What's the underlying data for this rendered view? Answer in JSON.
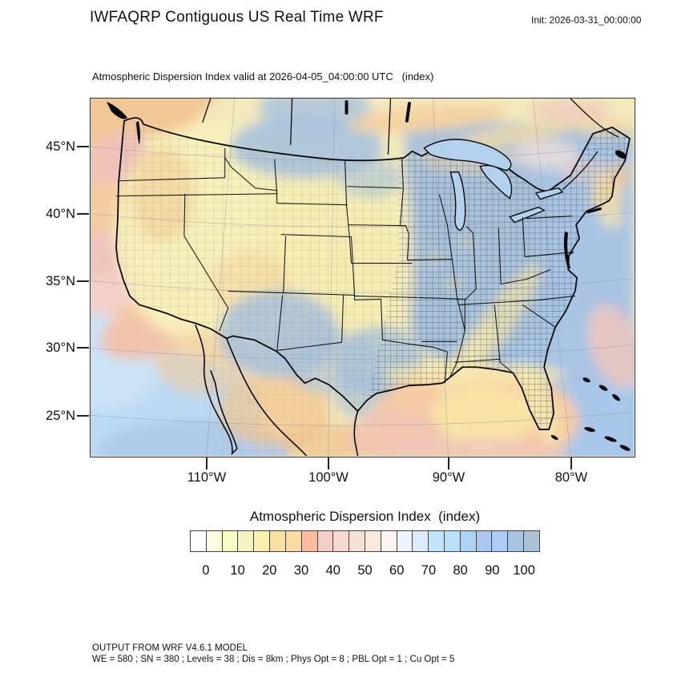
{
  "header": {
    "title": "IWFAQRP Contiguous US Real Time WRF",
    "init_label": "Init: 2026-03-31_00:00:00"
  },
  "plot": {
    "subtitle": "Atmospheric Dispersion Index valid at 2026-04-05_04:00:00 UTC   (index)"
  },
  "axes": {
    "lat_labels": [
      "45°N",
      "40°N",
      "35°N",
      "30°N",
      "25°N"
    ],
    "lon_labels": [
      "110°W",
      "100°W",
      "90°W",
      "80°W"
    ]
  },
  "colorbar": {
    "title": "Atmospheric Dispersion Index  (index)",
    "tick_labels": [
      "0",
      "10",
      "20",
      "30",
      "40",
      "50",
      "60",
      "70",
      "80",
      "90",
      "100"
    ],
    "value_range": [
      0,
      100
    ],
    "cell_colors": [
      "#ffffff",
      "#fdfce1",
      "#fbfbc4",
      "#f2f5c0",
      "#fcefad",
      "#fbdfa2",
      "#fbd9a1",
      "#fbbb9d",
      "#f3cfc5",
      "#f5d9cf",
      "#f6e1d6",
      "#f9e9de",
      "#fdf4f1",
      "#eef4fd",
      "#dcebfb",
      "#bee5fd",
      "#b8dffc",
      "#afd2f8",
      "#adc7f1",
      "#adccf5",
      "#a9c4e0",
      "#acc0d4"
    ]
  },
  "footer": {
    "line1": "OUTPUT FROM WRF V4.6.1 MODEL",
    "line2": "WE = 580 ; SN = 380 ; Levels = 38 ; Dis = 8km ; Phys Opt = 8 ; PBL Opt = 1 ; Cu Opt = 5"
  },
  "map": {
    "region": "Contiguous United States",
    "field_name": "Atmospheric Dispersion Index"
  }
}
